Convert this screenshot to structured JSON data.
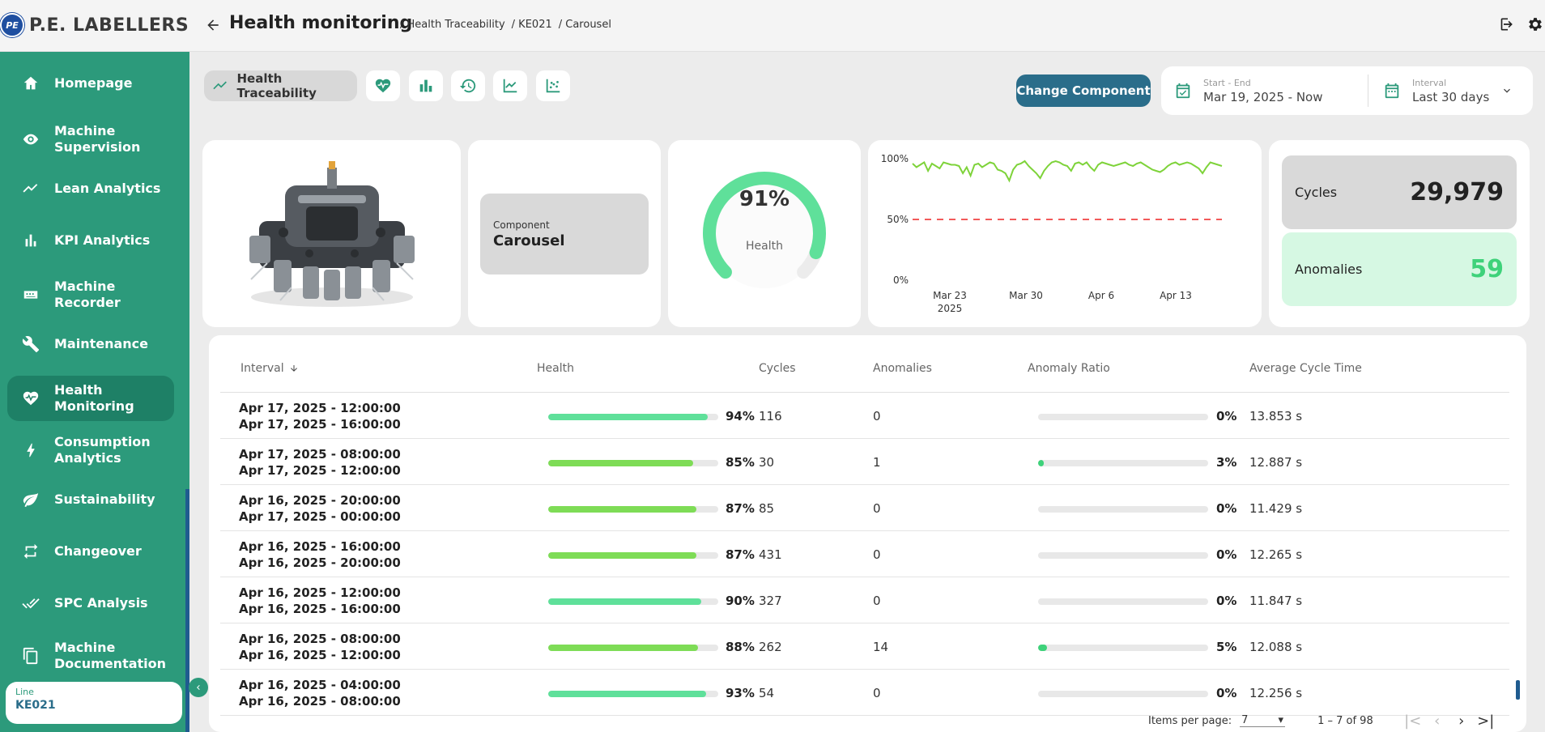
{
  "app": {
    "logo_initials": "PE",
    "logo_text": "P.E. LABELLERS",
    "page_title": "Health monitoring",
    "breadcrumb": [
      "/ Health Traceability",
      "/ KE021",
      "/ Carousel"
    ]
  },
  "sidebar": {
    "items": [
      {
        "label": "Homepage",
        "icon": "home-icon"
      },
      {
        "label": "Machine Supervision",
        "icon": "eye-icon"
      },
      {
        "label": "Lean Analytics",
        "icon": "trend-icon"
      },
      {
        "label": "KPI Analytics",
        "icon": "bar-chart-icon"
      },
      {
        "label": "Machine Recorder",
        "icon": "recorder-icon"
      },
      {
        "label": "Maintenance",
        "icon": "wrench-icon"
      },
      {
        "label": "Health Monitoring",
        "icon": "heart-pulse-icon",
        "active": true
      },
      {
        "label": "Consumption Analytics",
        "icon": "bolt-icon"
      },
      {
        "label": "Sustainability",
        "icon": "leaf-icon"
      },
      {
        "label": "Changeover",
        "icon": "changeover-icon"
      },
      {
        "label": "SPC Analysis",
        "icon": "check-double-icon"
      },
      {
        "label": "Machine Documentation",
        "icon": "document-icon"
      }
    ],
    "line_label": "Line",
    "line_value": "KE021"
  },
  "toolbar": {
    "active_tab": "Health Traceability",
    "change_component": "Change Component",
    "start_end_label": "Start - End",
    "start_end_value": "Mar 19, 2025 - Now",
    "interval_label": "Interval",
    "interval_value": "Last 30 days"
  },
  "component": {
    "label": "Component",
    "name": "Carousel"
  },
  "health": {
    "value_text": "91%",
    "value": 91,
    "label": "Health"
  },
  "mini_chart": {
    "type": "line",
    "yticks": [
      "100%",
      "50%",
      "0%"
    ],
    "xticks": [
      [
        "Mar 23",
        "2025"
      ],
      [
        "Mar 30"
      ],
      [
        "Apr 6"
      ],
      [
        "Apr 13"
      ]
    ],
    "threshold": 50,
    "ylim": [
      0,
      100
    ],
    "values": [
      96,
      93,
      95,
      97,
      90,
      96,
      94,
      92,
      97,
      96,
      95,
      95,
      94,
      88,
      93,
      86,
      95,
      96,
      93,
      95,
      97,
      96,
      91,
      90,
      88,
      82,
      91,
      95,
      96,
      98,
      94,
      91,
      88,
      84,
      90,
      94,
      97,
      98,
      97,
      95,
      94,
      90,
      96,
      97,
      95,
      97,
      93,
      90,
      95,
      97,
      96,
      95,
      94,
      95,
      96,
      97,
      95,
      94,
      96,
      97,
      95,
      93,
      91,
      90,
      89,
      91,
      94,
      96,
      97,
      95,
      96,
      97,
      96,
      94,
      92,
      88,
      93,
      97,
      96,
      95,
      94
    ],
    "line_color": "#7ed33a",
    "threshold_color": "#f25a5a"
  },
  "metrics": {
    "cycles_label": "Cycles",
    "cycles_value": "29,979",
    "anomalies_label": "Anomalies",
    "anomalies_value": "59"
  },
  "table": {
    "columns": [
      "Interval",
      "Health",
      "Cycles",
      "Anomalies",
      "Anomaly Ratio",
      "Average Cycle Time"
    ],
    "rows": [
      {
        "start": "Apr 17, 2025 - 12:00:00",
        "end": "Apr 17, 2025 - 16:00:00",
        "health": 94,
        "health_text": "94%",
        "cycles": "116",
        "anomalies": "0",
        "ratio": 0,
        "ratio_text": "0%",
        "avg": "13.853 s"
      },
      {
        "start": "Apr 17, 2025 - 08:00:00",
        "end": "Apr 17, 2025 - 12:00:00",
        "health": 85,
        "health_text": "85%",
        "cycles": "30",
        "anomalies": "1",
        "ratio": 3,
        "ratio_text": "3%",
        "avg": "12.887 s"
      },
      {
        "start": "Apr 16, 2025 - 20:00:00",
        "end": "Apr 17, 2025 - 00:00:00",
        "health": 87,
        "health_text": "87%",
        "cycles": "85",
        "anomalies": "0",
        "ratio": 0,
        "ratio_text": "0%",
        "avg": "11.429 s"
      },
      {
        "start": "Apr 16, 2025 - 16:00:00",
        "end": "Apr 16, 2025 - 20:00:00",
        "health": 87,
        "health_text": "87%",
        "cycles": "431",
        "anomalies": "0",
        "ratio": 0,
        "ratio_text": "0%",
        "avg": "12.265 s"
      },
      {
        "start": "Apr 16, 2025 - 12:00:00",
        "end": "Apr 16, 2025 - 16:00:00",
        "health": 90,
        "health_text": "90%",
        "cycles": "327",
        "anomalies": "0",
        "ratio": 0,
        "ratio_text": "0%",
        "avg": "11.847 s"
      },
      {
        "start": "Apr 16, 2025 - 08:00:00",
        "end": "Apr 16, 2025 - 12:00:00",
        "health": 88,
        "health_text": "88%",
        "cycles": "262",
        "anomalies": "14",
        "ratio": 5,
        "ratio_text": "5%",
        "avg": "12.088 s"
      },
      {
        "start": "Apr 16, 2025 - 04:00:00",
        "end": "Apr 16, 2025 - 08:00:00",
        "health": 93,
        "health_text": "93%",
        "cycles": "54",
        "anomalies": "0",
        "ratio": 0,
        "ratio_text": "0%",
        "avg": "12.256 s"
      }
    ]
  },
  "pagination": {
    "items_per_page_label": "Items per page:",
    "items_per_page": "7",
    "range": "1 – 7 of 98"
  },
  "colors": {
    "sidebar": "#2c9a7b",
    "accent_blue": "#2a6d8a",
    "health_green": "#5fe09a",
    "anomaly_green": "#3ed27a"
  }
}
